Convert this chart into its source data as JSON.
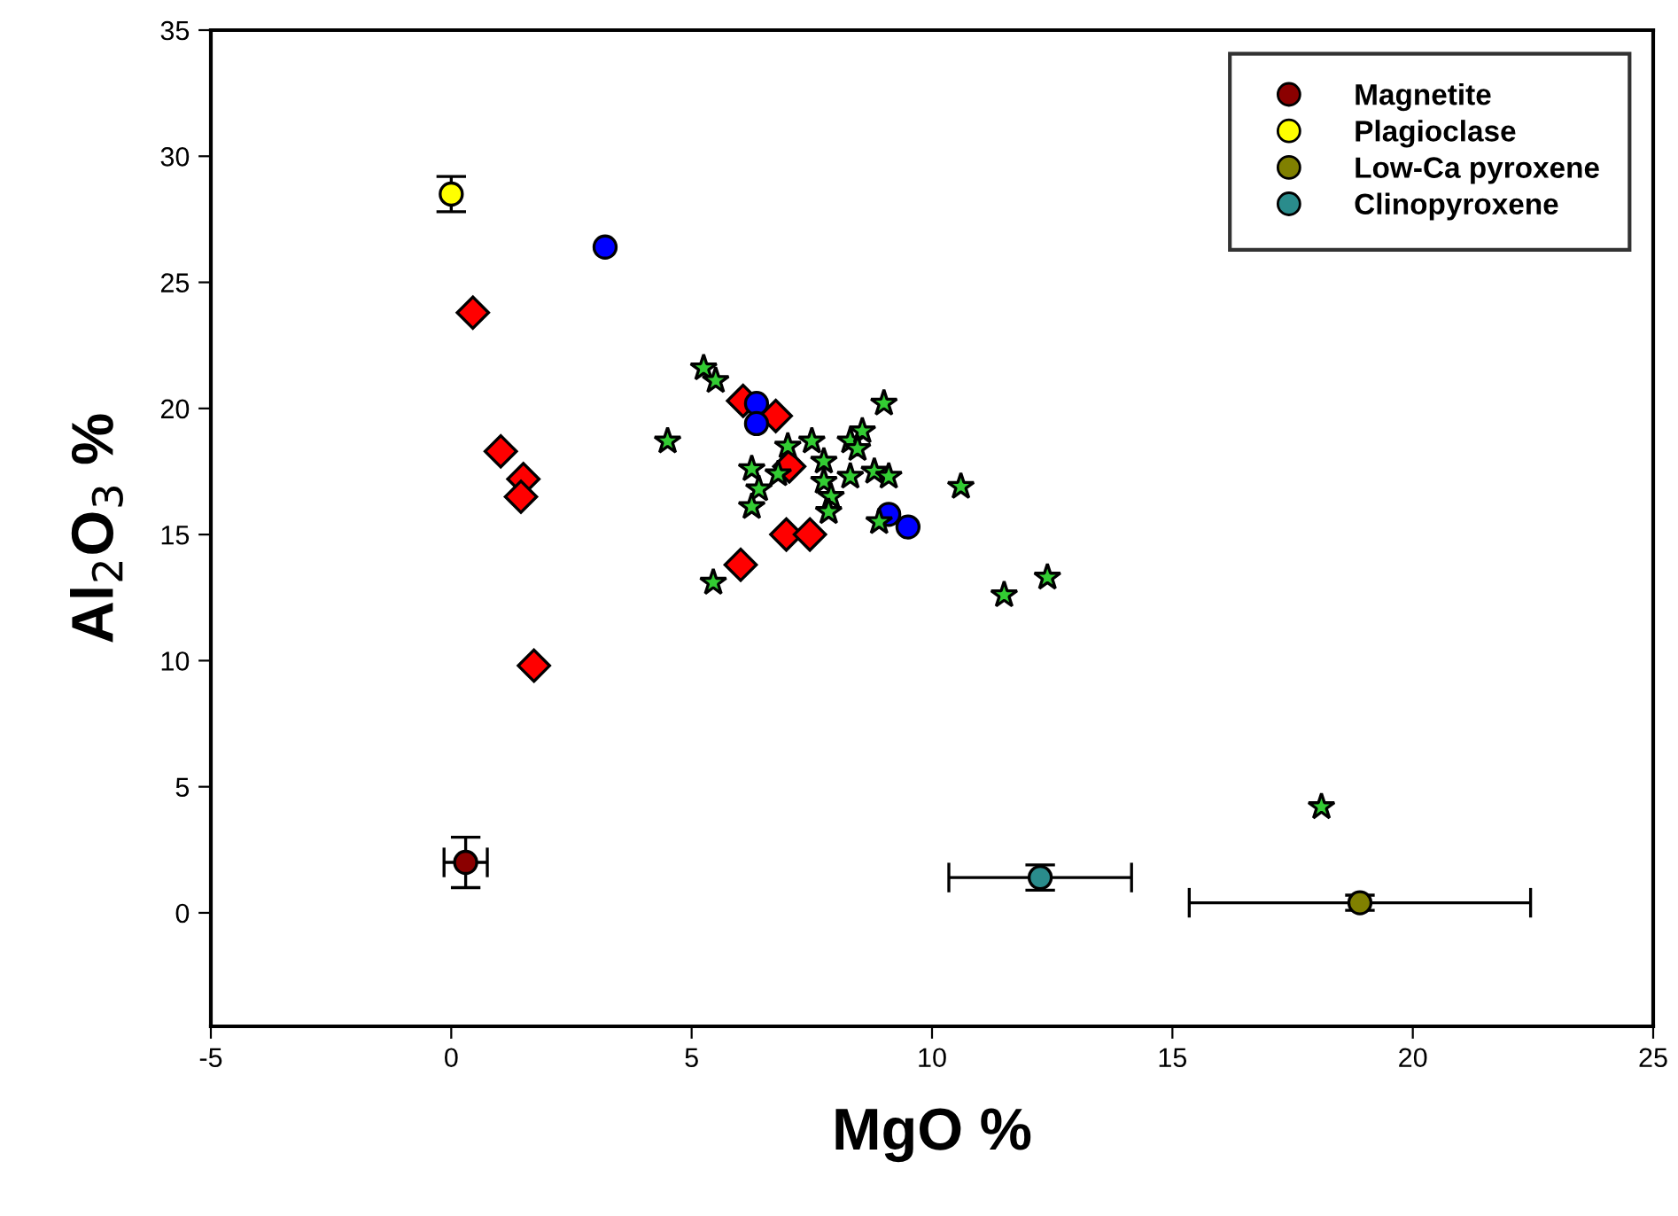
{
  "chart_data": {
    "type": "scatter",
    "xlabel": "MgO %",
    "ylabel": "Al$_{2}$O$_{3}$ %",
    "xlim": [
      -5,
      25
    ],
    "ylim": [
      -4.5,
      35
    ],
    "xticks": [
      -5,
      0,
      5,
      10,
      15,
      20,
      25
    ],
    "yticks": [
      0,
      5,
      10,
      15,
      20,
      25,
      30,
      35
    ],
    "grid": false,
    "legend": "top right",
    "series": [
      {
        "color": "#ff0000",
        "marker": "diamond",
        "x": [
          0.45,
          1.03,
          1.5,
          1.45,
          1.72,
          6.07,
          6.75,
          7.03,
          6.97,
          7.46,
          6.02
        ],
        "values": [
          23.8,
          18.3,
          17.2,
          16.5,
          9.8,
          20.3,
          19.7,
          17.7,
          15.0,
          15.0,
          13.8
        ]
      },
      {
        "color": "#0000ff",
        "marker": "circle",
        "x": [
          3.2,
          6.35,
          6.35,
          9.1,
          9.5
        ],
        "values": [
          26.4,
          20.2,
          19.4,
          15.8,
          15.3
        ]
      },
      {
        "color": "#33cc33",
        "marker": "star",
        "x": [
          5.25,
          5.5,
          4.5,
          9.0,
          7.0,
          7.5,
          7.75,
          6.25,
          6.8,
          6.4,
          6.25,
          7.75,
          7.9,
          7.85,
          8.3,
          8.55,
          8.45,
          8.3,
          8.8,
          9.1,
          8.9,
          10.6,
          5.45,
          11.5,
          12.4,
          18.1
        ],
        "values": [
          21.6,
          21.1,
          18.7,
          20.2,
          18.5,
          18.7,
          17.9,
          17.6,
          17.4,
          16.8,
          16.1,
          17.1,
          16.5,
          15.9,
          18.7,
          19.1,
          18.4,
          17.3,
          17.5,
          17.3,
          15.5,
          16.9,
          13.1,
          12.6,
          13.3,
          4.2
        ]
      },
      {
        "name": "Magnetite",
        "color": "#8b0000",
        "marker": "circle",
        "x": [
          0.3
        ],
        "values": [
          2.0
        ],
        "xerrors": [
          0.45
        ],
        "errors": [
          1.0
        ]
      },
      {
        "name": "Plagioclase",
        "color": "#ffff00",
        "marker": "circle",
        "x": [
          0.0
        ],
        "values": [
          28.5
        ],
        "errors": [
          0.7
        ]
      },
      {
        "name": "Low-Ca pyroxene",
        "color": "#808000",
        "marker": "circle",
        "x": [
          18.9
        ],
        "values": [
          0.4
        ],
        "xerrors": [
          3.55
        ],
        "errors": [
          0.3
        ]
      },
      {
        "name": "Clinopyroxene",
        "color": "#2a8c8c",
        "marker": "circle",
        "x": [
          12.25
        ],
        "values": [
          1.4
        ],
        "xerrors": [
          1.9
        ],
        "errors": [
          0.5
        ]
      }
    ]
  }
}
